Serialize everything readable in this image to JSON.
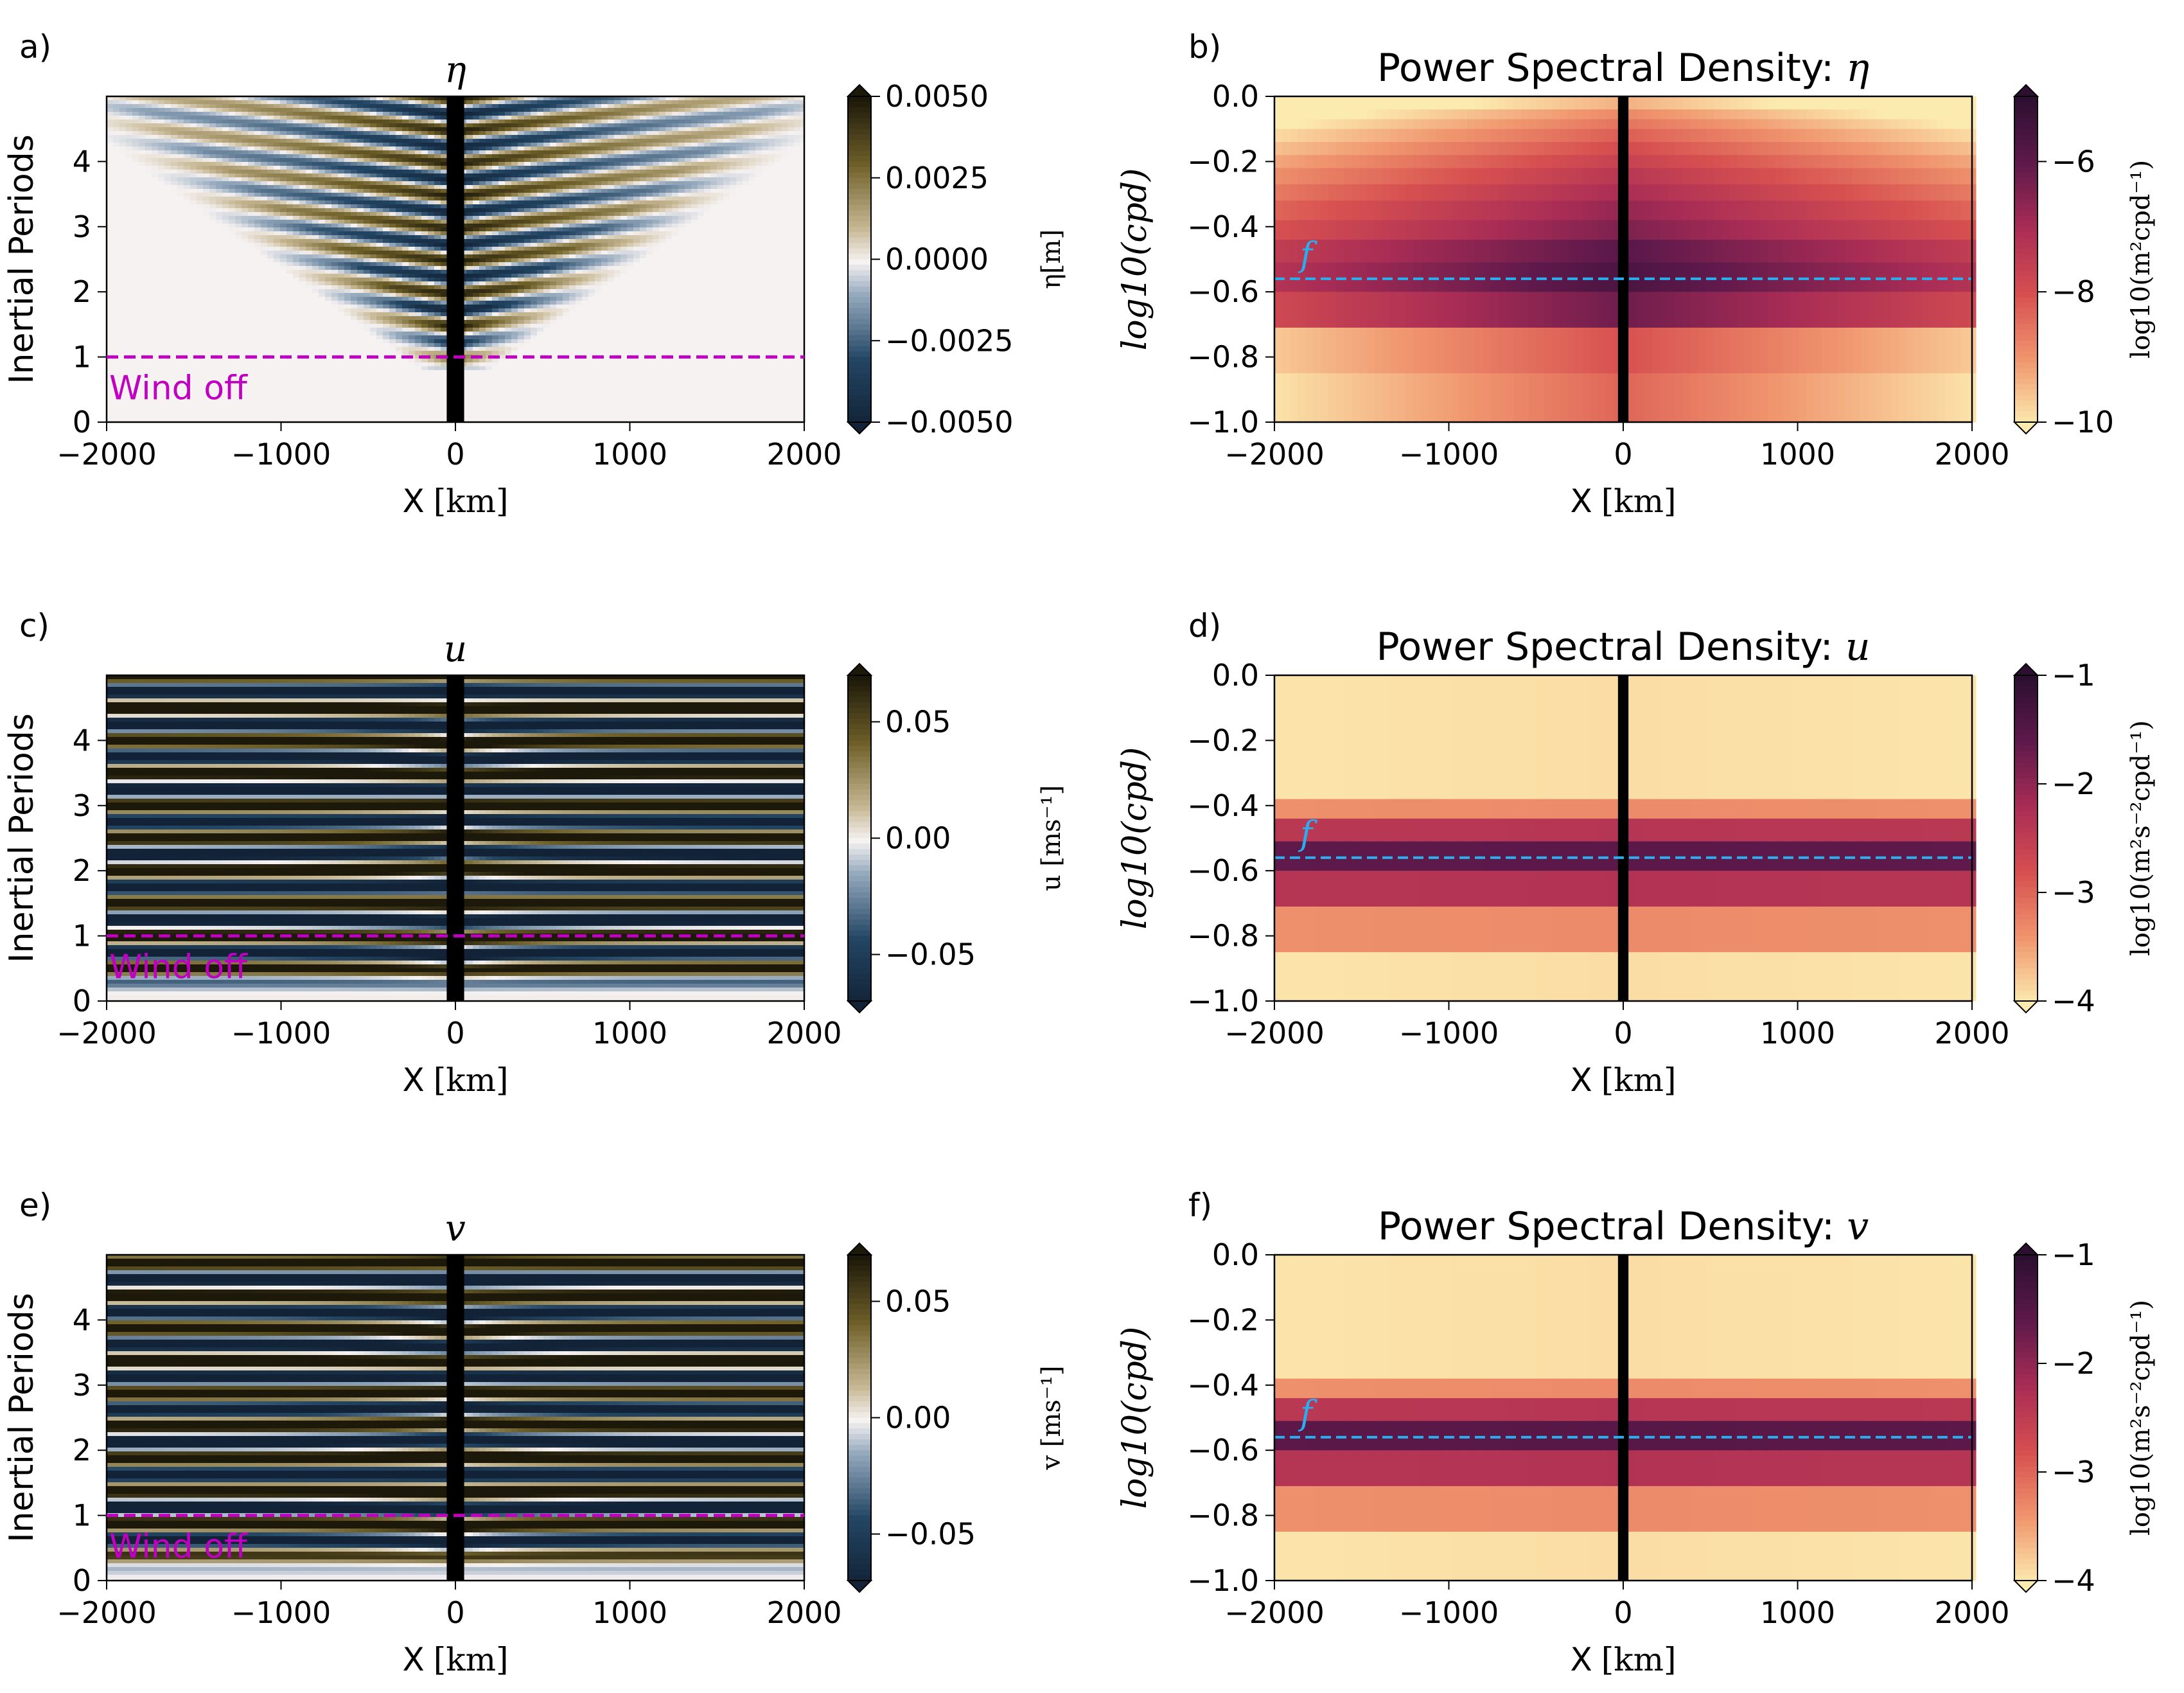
{
  "chart_data": [
    {
      "panel_label": "a)",
      "type": "heatmap",
      "variable": "eta",
      "title": "η",
      "xlabel": "X",
      "xunit": "[km]",
      "ylabel": "Inertial Periods",
      "xlim": [
        -2000,
        2000
      ],
      "ylim": [
        0,
        5
      ],
      "xticks": [
        "−2000",
        "−1000",
        "0",
        "1000",
        "2000"
      ],
      "yticks": [
        "0",
        "1",
        "2",
        "3",
        "4"
      ],
      "colormap": "diverging blue-white-brown",
      "colorbar": {
        "label": "η[m]",
        "range": [
          -0.005,
          0.005
        ],
        "ticks": [
          "0.0050",
          "0.0025",
          "0.0000",
          "−0.0025",
          "−0.0050"
        ]
      },
      "annotation": {
        "text": "Wind off",
        "y": 1,
        "color": "#c000c0"
      },
      "field": {
        "pattern": "v-shaped wave fronts spreading outward from x=0, starting after 1 inertial period",
        "band_x": [
          -50,
          50
        ]
      }
    },
    {
      "panel_label": "b)",
      "type": "heatmap",
      "variable": "eta",
      "title": "Power Spectral Density: ",
      "title_var": "η",
      "xlabel": "X",
      "xunit": "[km]",
      "ylabel": "log10(cpd)",
      "xlim": [
        -2000,
        2000
      ],
      "ylim": [
        -1.0,
        0.0
      ],
      "xticks": [
        "−2000",
        "−1000",
        "0",
        "1000",
        "2000"
      ],
      "yticks": [
        "0.0",
        "−0.2",
        "−0.4",
        "−0.6",
        "−0.8",
        "−1.0"
      ],
      "colormap": "magma-like",
      "colorbar": {
        "label": "log10(m²cpd⁻¹)",
        "range": [
          -10,
          -5
        ],
        "ticks": [
          "−6",
          "−8",
          "−10"
        ]
      },
      "reference_line": {
        "label": "f",
        "y": -0.56,
        "color": "#29aef0"
      },
      "rows": [
        {
          "y": [
            0.0,
            -0.04
          ],
          "v": -9.7
        },
        {
          "y": [
            -0.04,
            -0.07
          ],
          "v": -9.2
        },
        {
          "y": [
            -0.07,
            -0.1
          ],
          "v": -8.9
        },
        {
          "y": [
            -0.1,
            -0.14
          ],
          "v": -8.6
        },
        {
          "y": [
            -0.14,
            -0.18
          ],
          "v": -8.3
        },
        {
          "y": [
            -0.18,
            -0.22
          ],
          "v": -8.0
        },
        {
          "y": [
            -0.22,
            -0.27
          ],
          "v": -7.7
        },
        {
          "y": [
            -0.27,
            -0.32
          ],
          "v": -7.4
        },
        {
          "y": [
            -0.32,
            -0.38
          ],
          "v": -7.1
        },
        {
          "y": [
            -0.38,
            -0.44
          ],
          "v": -6.8
        },
        {
          "y": [
            -0.44,
            -0.51
          ],
          "v": -6.3
        },
        {
          "y": [
            -0.51,
            -0.6
          ],
          "v": -6.0
        },
        {
          "y": [
            -0.6,
            -0.71
          ],
          "v": -6.6
        },
        {
          "y": [
            -0.71,
            -0.85
          ],
          "v": -8.4
        },
        {
          "y": [
            -0.85,
            -1.0
          ],
          "v": -8.7
        }
      ],
      "band_x": [
        -30,
        30
      ]
    },
    {
      "panel_label": "c)",
      "type": "heatmap",
      "variable": "u",
      "title": "u",
      "xlabel": "X",
      "xunit": "[km]",
      "ylabel": "Inertial Periods",
      "xlim": [
        -2000,
        2000
      ],
      "ylim": [
        0,
        5
      ],
      "xticks": [
        "−2000",
        "−1000",
        "0",
        "1000",
        "2000"
      ],
      "yticks": [
        "0",
        "1",
        "2",
        "3",
        "4"
      ],
      "colormap": "diverging blue-white-brown",
      "colorbar": {
        "label": "u [ms⁻¹]",
        "range": [
          -0.07,
          0.07
        ],
        "ticks": [
          "0.05",
          "0.00",
          "−0.05"
        ]
      },
      "annotation": {
        "text": "Wind off",
        "y": 1,
        "color": "#c000c0"
      },
      "field": {
        "pattern": "horizontal inertial oscillation bands, ~2 per inertial period",
        "band_x": [
          -50,
          50
        ]
      }
    },
    {
      "panel_label": "d)",
      "type": "heatmap",
      "variable": "u",
      "title": "Power Spectral Density: ",
      "title_var": "u",
      "xlabel": "X",
      "xunit": "[km]",
      "ylabel": "log10(cpd)",
      "xlim": [
        -2000,
        2000
      ],
      "ylim": [
        -1.0,
        0.0
      ],
      "xticks": [
        "−2000",
        "−1000",
        "0",
        "1000",
        "2000"
      ],
      "yticks": [
        "0.0",
        "−0.2",
        "−0.4",
        "−0.6",
        "−0.8",
        "−1.0"
      ],
      "colormap": "magma-like",
      "colorbar": {
        "label": "log10(m²s⁻²cpd⁻¹)",
        "range": [
          -4,
          -1
        ],
        "ticks": [
          "−1",
          "−2",
          "−3",
          "−4"
        ]
      },
      "reference_line": {
        "label": "f",
        "y": -0.56,
        "color": "#29aef0"
      },
      "rows": [
        {
          "y": [
            0.0,
            -0.38
          ],
          "v": -3.9
        },
        {
          "y": [
            -0.38,
            -0.44
          ],
          "v": -3.3
        },
        {
          "y": [
            -0.44,
            -0.51
          ],
          "v": -2.35
        },
        {
          "y": [
            -0.51,
            -0.6
          ],
          "v": -1.55
        },
        {
          "y": [
            -0.6,
            -0.71
          ],
          "v": -2.3
        },
        {
          "y": [
            -0.71,
            -0.85
          ],
          "v": -3.3
        },
        {
          "y": [
            -0.85,
            -1.0
          ],
          "v": -3.9
        }
      ],
      "band_x": [
        -30,
        30
      ]
    },
    {
      "panel_label": "e)",
      "type": "heatmap",
      "variable": "v",
      "title": "v",
      "xlabel": "X",
      "xunit": "[km]",
      "ylabel": "Inertial Periods",
      "xlim": [
        -2000,
        2000
      ],
      "ylim": [
        0,
        5
      ],
      "xticks": [
        "−2000",
        "−1000",
        "0",
        "1000",
        "2000"
      ],
      "yticks": [
        "0",
        "1",
        "2",
        "3",
        "4"
      ],
      "colormap": "diverging blue-white-brown",
      "colorbar": {
        "label": "v [ms⁻¹]",
        "range": [
          -0.07,
          0.07
        ],
        "ticks": [
          "0.05",
          "0.00",
          "−0.05"
        ]
      },
      "annotation": {
        "text": "Wind off",
        "y": 1,
        "color": "#c000c0"
      },
      "field": {
        "pattern": "horizontal inertial oscillation bands, phase-shifted from u",
        "band_x": [
          -50,
          50
        ]
      }
    },
    {
      "panel_label": "f)",
      "type": "heatmap",
      "variable": "v",
      "title": "Power Spectral Density: ",
      "title_var": "v",
      "xlabel": "X",
      "xunit": "[km]",
      "ylabel": "log10(cpd)",
      "xlim": [
        -2000,
        2000
      ],
      "ylim": [
        -1.0,
        0.0
      ],
      "xticks": [
        "−2000",
        "−1000",
        "0",
        "1000",
        "2000"
      ],
      "yticks": [
        "0.0",
        "−0.2",
        "−0.4",
        "−0.6",
        "−0.8",
        "−1.0"
      ],
      "colormap": "magma-like",
      "colorbar": {
        "label": "log10(m²s⁻²cpd⁻¹)",
        "range": [
          -4,
          -1
        ],
        "ticks": [
          "−1",
          "−2",
          "−3",
          "−4"
        ]
      },
      "reference_line": {
        "label": "f",
        "y": -0.56,
        "color": "#29aef0"
      },
      "rows": [
        {
          "y": [
            0.0,
            -0.38
          ],
          "v": -3.9
        },
        {
          "y": [
            -0.38,
            -0.44
          ],
          "v": -3.3
        },
        {
          "y": [
            -0.44,
            -0.51
          ],
          "v": -2.35
        },
        {
          "y": [
            -0.51,
            -0.6
          ],
          "v": -1.5
        },
        {
          "y": [
            -0.6,
            -0.71
          ],
          "v": -2.3
        },
        {
          "y": [
            -0.71,
            -0.85
          ],
          "v": -3.3
        },
        {
          "y": [
            -0.85,
            -1.0
          ],
          "v": -3.9
        }
      ],
      "band_x": [
        -30,
        30
      ]
    }
  ]
}
